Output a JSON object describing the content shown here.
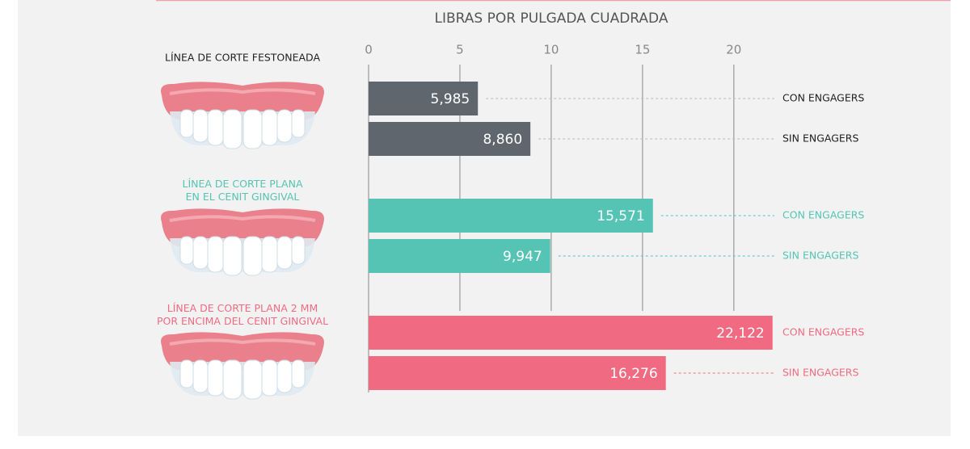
{
  "chart_data": {
    "type": "grouped-hbar",
    "title": "LIBRAS POR PULGADA CUADRADA",
    "categories": [
      "LÍNEA DE CORTE FESTONEADA",
      "LÍNEA DE CORTE PLANA\nEN EL CENIT GINGIVAL",
      "LÍNEA DE CORTE PLANA 2 MM\nPOR ENCIMA DEL CENIT GINGIVAL"
    ],
    "colors": [
      "#5f666d",
      "#55c4b4",
      "#f06b82"
    ],
    "series": [
      {
        "name": "CON ENGAGERS",
        "values": [
          5.985,
          15.571,
          22.122
        ],
        "value_labels": [
          "5,985",
          "15,571",
          "22,122"
        ]
      },
      {
        "name": "SIN ENGAGERS",
        "values": [
          8.86,
          9.947,
          16.276
        ],
        "value_labels": [
          "8,860",
          "9,947",
          "16,276"
        ]
      }
    ],
    "xlim": [
      0,
      22
    ],
    "xticks": [
      0,
      5,
      10,
      15,
      20
    ],
    "grid": true
  }
}
